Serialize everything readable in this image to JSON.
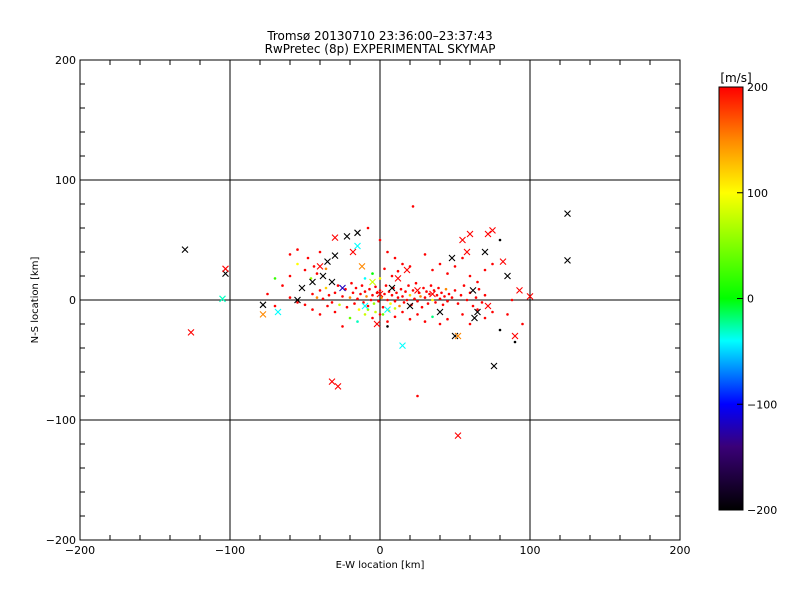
{
  "chart_data": {
    "type": "scatter",
    "title_line1": "Tromsø 20130710 23:36:00–23:37:43",
    "title_line2": "RwPretec (8p) EXPERIMENTAL SKYMAP",
    "xlabel": "E-W location [km]",
    "ylabel": "N-S location [km]",
    "xlim": [
      -200,
      200
    ],
    "ylim": [
      -200,
      200
    ],
    "x_ticks": [
      -200,
      -100,
      0,
      100,
      200
    ],
    "y_ticks": [
      -200,
      -100,
      0,
      100,
      200
    ],
    "x_tick_labels": [
      "−200",
      "−100",
      "0",
      "100",
      "200"
    ],
    "y_tick_labels": [
      "−200",
      "−100",
      "0",
      "100",
      "200"
    ],
    "grid_lines": [
      -100,
      0,
      100
    ],
    "colorbar": {
      "unit_label": "[m/s]",
      "range": [
        -200,
        200
      ],
      "ticks": [
        200,
        100,
        0,
        -100,
        -200
      ],
      "tick_labels": [
        "200",
        "100",
        "0",
        "−100",
        "−200"
      ],
      "colormap": [
        {
          "v": -200,
          "c": "#000000"
        },
        {
          "v": -140,
          "c": "#3a0078"
        },
        {
          "v": -100,
          "c": "#0000ff"
        },
        {
          "v": -40,
          "c": "#00ffff"
        },
        {
          "v": 0,
          "c": "#00ff00"
        },
        {
          "v": 100,
          "c": "#ffff00"
        },
        {
          "v": 150,
          "c": "#ff8800"
        },
        {
          "v": 200,
          "c": "#ff0000"
        }
      ]
    },
    "cross_points": [
      {
        "x": -130,
        "y": 42,
        "v": -200
      },
      {
        "x": -103,
        "y": 22,
        "v": -200
      },
      {
        "x": -103,
        "y": 26,
        "v": 200
      },
      {
        "x": -105,
        "y": 1,
        "v": -30
      },
      {
        "x": -126,
        "y": -27,
        "v": 200
      },
      {
        "x": -78,
        "y": -4,
        "v": -200
      },
      {
        "x": -78,
        "y": -12,
        "v": 150
      },
      {
        "x": -68,
        "y": -10,
        "v": -40
      },
      {
        "x": -55,
        "y": 0,
        "v": -200
      },
      {
        "x": -52,
        "y": 10,
        "v": -200
      },
      {
        "x": -45,
        "y": 15,
        "v": -200
      },
      {
        "x": -40,
        "y": 28,
        "v": 200
      },
      {
        "x": -38,
        "y": 20,
        "v": -200
      },
      {
        "x": -35,
        "y": 32,
        "v": -200
      },
      {
        "x": -32,
        "y": 15,
        "v": -200
      },
      {
        "x": -30,
        "y": 37,
        "v": -200
      },
      {
        "x": -30,
        "y": 52,
        "v": 200
      },
      {
        "x": -25,
        "y": 10,
        "v": -120
      },
      {
        "x": -22,
        "y": 53,
        "v": -200
      },
      {
        "x": -15,
        "y": 56,
        "v": -200
      },
      {
        "x": -18,
        "y": 40,
        "v": 200
      },
      {
        "x": -15,
        "y": 45,
        "v": -40
      },
      {
        "x": -12,
        "y": 28,
        "v": 150
      },
      {
        "x": -10,
        "y": -5,
        "v": -40
      },
      {
        "x": -5,
        "y": 15,
        "v": 80
      },
      {
        "x": 0,
        "y": 5,
        "v": 200
      },
      {
        "x": 5,
        "y": -8,
        "v": -40
      },
      {
        "x": 8,
        "y": 10,
        "v": -200
      },
      {
        "x": 15,
        "y": -38,
        "v": -40
      },
      {
        "x": 20,
        "y": -5,
        "v": -200
      },
      {
        "x": 25,
        "y": 8,
        "v": 200
      },
      {
        "x": 35,
        "y": 5,
        "v": 200
      },
      {
        "x": 40,
        "y": -10,
        "v": -200
      },
      {
        "x": 48,
        "y": 35,
        "v": -200
      },
      {
        "x": 50,
        "y": -30,
        "v": -200
      },
      {
        "x": 52,
        "y": -30,
        "v": 150
      },
      {
        "x": 55,
        "y": 50,
        "v": 200
      },
      {
        "x": 58,
        "y": 40,
        "v": 200
      },
      {
        "x": 60,
        "y": 55,
        "v": 200
      },
      {
        "x": 62,
        "y": 8,
        "v": -200
      },
      {
        "x": 63,
        "y": -15,
        "v": -200
      },
      {
        "x": 65,
        "y": -10,
        "v": -200
      },
      {
        "x": 70,
        "y": 40,
        "v": -200
      },
      {
        "x": 72,
        "y": 55,
        "v": 200
      },
      {
        "x": 75,
        "y": 58,
        "v": 200
      },
      {
        "x": 72,
        "y": -5,
        "v": 200
      },
      {
        "x": 76,
        "y": -55,
        "v": -200
      },
      {
        "x": 82,
        "y": 32,
        "v": 200
      },
      {
        "x": 85,
        "y": 20,
        "v": -200
      },
      {
        "x": 90,
        "y": -30,
        "v": 200
      },
      {
        "x": 93,
        "y": 8,
        "v": 200
      },
      {
        "x": 100,
        "y": 3,
        "v": 200
      },
      {
        "x": 125,
        "y": 72,
        "v": -200
      },
      {
        "x": 125,
        "y": 33,
        "v": -200
      },
      {
        "x": -32,
        "y": -68,
        "v": 200
      },
      {
        "x": -28,
        "y": -72,
        "v": 200
      },
      {
        "x": 52,
        "y": -113,
        "v": 200
      },
      {
        "x": 18,
        "y": 25,
        "v": 200
      },
      {
        "x": -2,
        "y": -20,
        "v": 200
      },
      {
        "x": 12,
        "y": 18,
        "v": 200
      }
    ],
    "dot_points": [
      {
        "x": -45,
        "y": 5,
        "v": 200
      },
      {
        "x": -42,
        "y": 2,
        "v": 150
      },
      {
        "x": -40,
        "y": 8,
        "v": 200
      },
      {
        "x": -38,
        "y": 1,
        "v": 200
      },
      {
        "x": -36,
        "y": 10,
        "v": 120
      },
      {
        "x": -34,
        "y": 4,
        "v": 200
      },
      {
        "x": -32,
        "y": -2,
        "v": 200
      },
      {
        "x": -30,
        "y": 6,
        "v": 200
      },
      {
        "x": -28,
        "y": 12,
        "v": 200
      },
      {
        "x": -27,
        "y": -4,
        "v": 80
      },
      {
        "x": -25,
        "y": 3,
        "v": 200
      },
      {
        "x": -23,
        "y": 9,
        "v": 200
      },
      {
        "x": -22,
        "y": -6,
        "v": 200
      },
      {
        "x": -20,
        "y": 2,
        "v": 150
      },
      {
        "x": -19,
        "y": 14,
        "v": 200
      },
      {
        "x": -18,
        "y": 6,
        "v": 200
      },
      {
        "x": -17,
        "y": -3,
        "v": 200
      },
      {
        "x": -16,
        "y": 10,
        "v": 200
      },
      {
        "x": -15,
        "y": 1,
        "v": 200
      },
      {
        "x": -14,
        "y": -8,
        "v": 100
      },
      {
        "x": -13,
        "y": 5,
        "v": 200
      },
      {
        "x": -12,
        "y": 12,
        "v": 200
      },
      {
        "x": -11,
        "y": -2,
        "v": 200
      },
      {
        "x": -10,
        "y": 7,
        "v": 200
      },
      {
        "x": -9,
        "y": 3,
        "v": 150
      },
      {
        "x": -8,
        "y": -5,
        "v": 200
      },
      {
        "x": -7,
        "y": 9,
        "v": 200
      },
      {
        "x": -6,
        "y": 0,
        "v": 200
      },
      {
        "x": -5,
        "y": 4,
        "v": 200
      },
      {
        "x": -4,
        "y": -3,
        "v": 60
      },
      {
        "x": -3,
        "y": 11,
        "v": 200
      },
      {
        "x": -2,
        "y": 6,
        "v": 200
      },
      {
        "x": -1,
        "y": -1,
        "v": 200
      },
      {
        "x": 0,
        "y": 8,
        "v": 200
      },
      {
        "x": 1,
        "y": 2,
        "v": 150
      },
      {
        "x": 2,
        "y": -6,
        "v": 200
      },
      {
        "x": 3,
        "y": 5,
        "v": 200
      },
      {
        "x": 4,
        "y": 12,
        "v": 200
      },
      {
        "x": 5,
        "y": 0,
        "v": 200
      },
      {
        "x": 6,
        "y": 7,
        "v": 200
      },
      {
        "x": 7,
        "y": -3,
        "v": 100
      },
      {
        "x": 8,
        "y": 4,
        "v": 200
      },
      {
        "x": 9,
        "y": 10,
        "v": 200
      },
      {
        "x": 10,
        "y": -1,
        "v": 200
      },
      {
        "x": 11,
        "y": 6,
        "v": 200
      },
      {
        "x": 12,
        "y": 2,
        "v": 200
      },
      {
        "x": 13,
        "y": -5,
        "v": 150
      },
      {
        "x": 14,
        "y": 9,
        "v": 200
      },
      {
        "x": 15,
        "y": 3,
        "v": 200
      },
      {
        "x": 16,
        "y": -2,
        "v": 200
      },
      {
        "x": 17,
        "y": 7,
        "v": 200
      },
      {
        "x": 18,
        "y": 0,
        "v": 200
      },
      {
        "x": 19,
        "y": 12,
        "v": 200
      },
      {
        "x": 20,
        "y": 4,
        "v": 120
      },
      {
        "x": 21,
        "y": -4,
        "v": 200
      },
      {
        "x": 22,
        "y": 8,
        "v": 200
      },
      {
        "x": 23,
        "y": 1,
        "v": 200
      },
      {
        "x": 24,
        "y": 14,
        "v": 200
      },
      {
        "x": 25,
        "y": -1,
        "v": 200
      },
      {
        "x": 26,
        "y": 6,
        "v": 200
      },
      {
        "x": 27,
        "y": 3,
        "v": 150
      },
      {
        "x": 28,
        "y": -6,
        "v": 200
      },
      {
        "x": 29,
        "y": 10,
        "v": 200
      },
      {
        "x": 30,
        "y": 2,
        "v": 200
      },
      {
        "x": 31,
        "y": 7,
        "v": 200
      },
      {
        "x": 32,
        "y": -3,
        "v": 200
      },
      {
        "x": 33,
        "y": 5,
        "v": 200
      },
      {
        "x": 34,
        "y": 12,
        "v": 200
      },
      {
        "x": 35,
        "y": 0,
        "v": 100
      },
      {
        "x": 36,
        "y": 8,
        "v": 200
      },
      {
        "x": 37,
        "y": -2,
        "v": 200
      },
      {
        "x": 38,
        "y": 4,
        "v": 200
      },
      {
        "x": 39,
        "y": 10,
        "v": 200
      },
      {
        "x": 40,
        "y": 1,
        "v": 200
      },
      {
        "x": 41,
        "y": 6,
        "v": 200
      },
      {
        "x": 42,
        "y": -4,
        "v": 200
      },
      {
        "x": 43,
        "y": 3,
        "v": 200
      },
      {
        "x": 44,
        "y": 9,
        "v": 150
      },
      {
        "x": 45,
        "y": -1,
        "v": 200
      },
      {
        "x": 46,
        "y": 5,
        "v": 200
      },
      {
        "x": 48,
        "y": 2,
        "v": 200
      },
      {
        "x": 50,
        "y": 8,
        "v": 200
      },
      {
        "x": 52,
        "y": -3,
        "v": 200
      },
      {
        "x": 54,
        "y": 4,
        "v": 200
      },
      {
        "x": 56,
        "y": 12,
        "v": 200
      },
      {
        "x": 58,
        "y": 0,
        "v": 200
      },
      {
        "x": 60,
        "y": 6,
        "v": 200
      },
      {
        "x": 62,
        "y": -5,
        "v": 200
      },
      {
        "x": 64,
        "y": 2,
        "v": 200
      },
      {
        "x": 66,
        "y": 9,
        "v": 200
      },
      {
        "x": 68,
        "y": -2,
        "v": 200
      },
      {
        "x": 70,
        "y": 4,
        "v": 200
      },
      {
        "x": -60,
        "y": 20,
        "v": 200
      },
      {
        "x": -55,
        "y": 30,
        "v": 100
      },
      {
        "x": -50,
        "y": 25,
        "v": 200
      },
      {
        "x": -48,
        "y": 35,
        "v": 200
      },
      {
        "x": -46,
        "y": 18,
        "v": 60
      },
      {
        "x": -44,
        "y": 28,
        "v": 200
      },
      {
        "x": -42,
        "y": 22,
        "v": 200
      },
      {
        "x": -40,
        "y": 40,
        "v": 200
      },
      {
        "x": -36,
        "y": 26,
        "v": 150
      },
      {
        "x": -60,
        "y": 38,
        "v": 200
      },
      {
        "x": -55,
        "y": 42,
        "v": 200
      },
      {
        "x": -70,
        "y": 18,
        "v": 20
      },
      {
        "x": -65,
        "y": 12,
        "v": 200
      },
      {
        "x": -75,
        "y": 5,
        "v": 200
      },
      {
        "x": -70,
        "y": -5,
        "v": 200
      },
      {
        "x": -8,
        "y": 60,
        "v": 200
      },
      {
        "x": 0,
        "y": 50,
        "v": 200
      },
      {
        "x": 5,
        "y": 40,
        "v": 200
      },
      {
        "x": 10,
        "y": 35,
        "v": 200
      },
      {
        "x": 15,
        "y": 30,
        "v": 200
      },
      {
        "x": 20,
        "y": 28,
        "v": 200
      },
      {
        "x": 22,
        "y": 78,
        "v": 200
      },
      {
        "x": 30,
        "y": 38,
        "v": 200
      },
      {
        "x": 35,
        "y": 25,
        "v": 200
      },
      {
        "x": 40,
        "y": 30,
        "v": 200
      },
      {
        "x": 45,
        "y": 22,
        "v": 200
      },
      {
        "x": 50,
        "y": 28,
        "v": 200
      },
      {
        "x": 55,
        "y": 35,
        "v": 200
      },
      {
        "x": 60,
        "y": 20,
        "v": 200
      },
      {
        "x": 65,
        "y": 15,
        "v": 200
      },
      {
        "x": 80,
        "y": 50,
        "v": -200
      },
      {
        "x": 75,
        "y": 30,
        "v": 200
      },
      {
        "x": 70,
        "y": 25,
        "v": 200
      },
      {
        "x": -20,
        "y": -15,
        "v": 40
      },
      {
        "x": -15,
        "y": -18,
        "v": -30
      },
      {
        "x": -10,
        "y": -12,
        "v": 80
      },
      {
        "x": -5,
        "y": -15,
        "v": 200
      },
      {
        "x": 0,
        "y": -12,
        "v": 200
      },
      {
        "x": 5,
        "y": -18,
        "v": 200
      },
      {
        "x": 10,
        "y": -14,
        "v": 200
      },
      {
        "x": 15,
        "y": -10,
        "v": 200
      },
      {
        "x": 20,
        "y": -16,
        "v": 200
      },
      {
        "x": 25,
        "y": -12,
        "v": 200
      },
      {
        "x": 30,
        "y": -18,
        "v": 200
      },
      {
        "x": 35,
        "y": -14,
        "v": -20
      },
      {
        "x": 40,
        "y": -20,
        "v": 200
      },
      {
        "x": 45,
        "y": -16,
        "v": 200
      },
      {
        "x": 55,
        "y": -12,
        "v": 200
      },
      {
        "x": 60,
        "y": -20,
        "v": 200
      },
      {
        "x": 65,
        "y": -8,
        "v": 200
      },
      {
        "x": 70,
        "y": -15,
        "v": 200
      },
      {
        "x": 75,
        "y": -10,
        "v": 200
      },
      {
        "x": 80,
        "y": -25,
        "v": -200
      },
      {
        "x": 85,
        "y": -12,
        "v": 200
      },
      {
        "x": 90,
        "y": -35,
        "v": -200
      },
      {
        "x": 95,
        "y": -20,
        "v": 200
      },
      {
        "x": 88,
        "y": 0,
        "v": 200
      },
      {
        "x": 5,
        "y": -22,
        "v": -200
      },
      {
        "x": -25,
        "y": -22,
        "v": 200
      },
      {
        "x": -30,
        "y": -10,
        "v": 200
      },
      {
        "x": -35,
        "y": -5,
        "v": 200
      },
      {
        "x": -40,
        "y": -12,
        "v": 200
      },
      {
        "x": -45,
        "y": -8,
        "v": 200
      },
      {
        "x": -50,
        "y": -4,
        "v": 200
      },
      {
        "x": -55,
        "y": -2,
        "v": 200
      },
      {
        "x": -60,
        "y": 2,
        "v": 200
      },
      {
        "x": 25,
        "y": -80,
        "v": 200
      },
      {
        "x": -10,
        "y": 18,
        "v": -40
      },
      {
        "x": -5,
        "y": 22,
        "v": 0
      },
      {
        "x": 0,
        "y": 18,
        "v": 100
      },
      {
        "x": 3,
        "y": 26,
        "v": 200
      },
      {
        "x": 8,
        "y": 20,
        "v": 200
      },
      {
        "x": 12,
        "y": 24,
        "v": 200
      },
      {
        "x": -8,
        "y": -8,
        "v": 60
      },
      {
        "x": -3,
        "y": -10,
        "v": 80
      },
      {
        "x": 2,
        "y": -12,
        "v": 40
      },
      {
        "x": 6,
        "y": -9,
        "v": 120
      },
      {
        "x": 10,
        "y": -7,
        "v": 80
      }
    ]
  }
}
